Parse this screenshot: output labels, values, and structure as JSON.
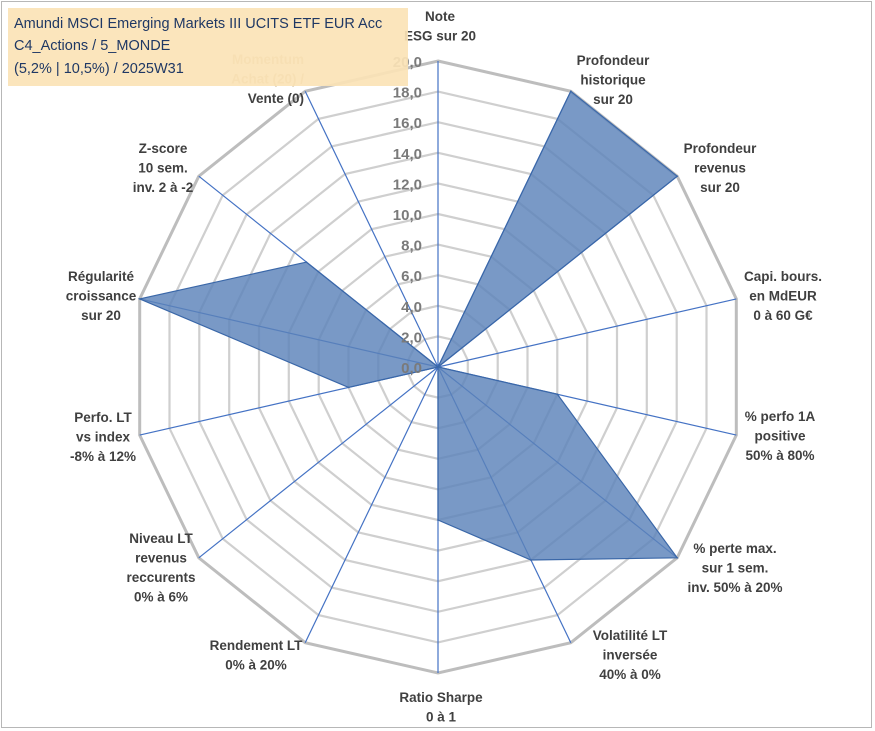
{
  "title": {
    "line1": "Amundi MSCI Emerging Markets III UCITS ETF EUR Acc",
    "line2": "C4_Actions / 5_MONDE",
    "line3": "(5,2% | 10,5%) / 2025W31"
  },
  "colors": {
    "fill": "#5b82b9",
    "stroke": "#3a67a8",
    "spoke": "#4472c4",
    "ring": "#cfcfcf",
    "outer_ring": "#bdbdbd",
    "label": "#404040",
    "tick": "#7a7a7a",
    "momentum_label": "#c7b48f",
    "title_bg": "#fbe3b6",
    "title_text": "#1f3864"
  },
  "chart_data": {
    "type": "radar",
    "ylim": [
      0,
      20
    ],
    "tick_values": [
      0,
      2,
      4,
      6,
      8,
      10,
      12,
      14,
      16,
      18,
      20
    ],
    "tick_labels": [
      "0,0",
      "2,0",
      "4,0",
      "6,0",
      "8,0",
      "10,0",
      "12,0",
      "14,0",
      "16,0",
      "18,0",
      "20,0"
    ],
    "grid": true,
    "categories": [
      [
        "Note",
        "ESG sur 20"
      ],
      [
        "Profondeur",
        "historique",
        "sur 20"
      ],
      [
        "Profondeur",
        "revenus",
        "sur 20"
      ],
      [
        "Capi. bours.",
        "en MdEUR",
        "0 à 60 G€"
      ],
      [
        "% perfo 1A",
        "positive",
        "50% à 80%"
      ],
      [
        "% perte max.",
        "sur 1 sem.",
        "inv. 50% à 20%"
      ],
      [
        "Volatilité LT",
        "inversée",
        "40% à 0%"
      ],
      [
        "Ratio Sharpe",
        "0 à 1"
      ],
      [
        "Rendement LT",
        "0% à 20%"
      ],
      [
        "Niveau LT",
        "revenus",
        "reccurents",
        "0% à 6%"
      ],
      [
        "Perfo. LT",
        "vs index",
        "-8% à 12%"
      ],
      [
        "Régularité",
        "croissance",
        "sur 20"
      ],
      [
        "Z-score",
        "10 sem.",
        "inv. 2 à -2"
      ],
      [
        "Momentum",
        "Achat (20) /",
        "Vente (0)"
      ]
    ],
    "values": [
      0,
      20,
      20,
      0,
      8,
      20,
      14,
      10,
      0,
      0,
      6,
      20,
      11,
      0
    ]
  }
}
